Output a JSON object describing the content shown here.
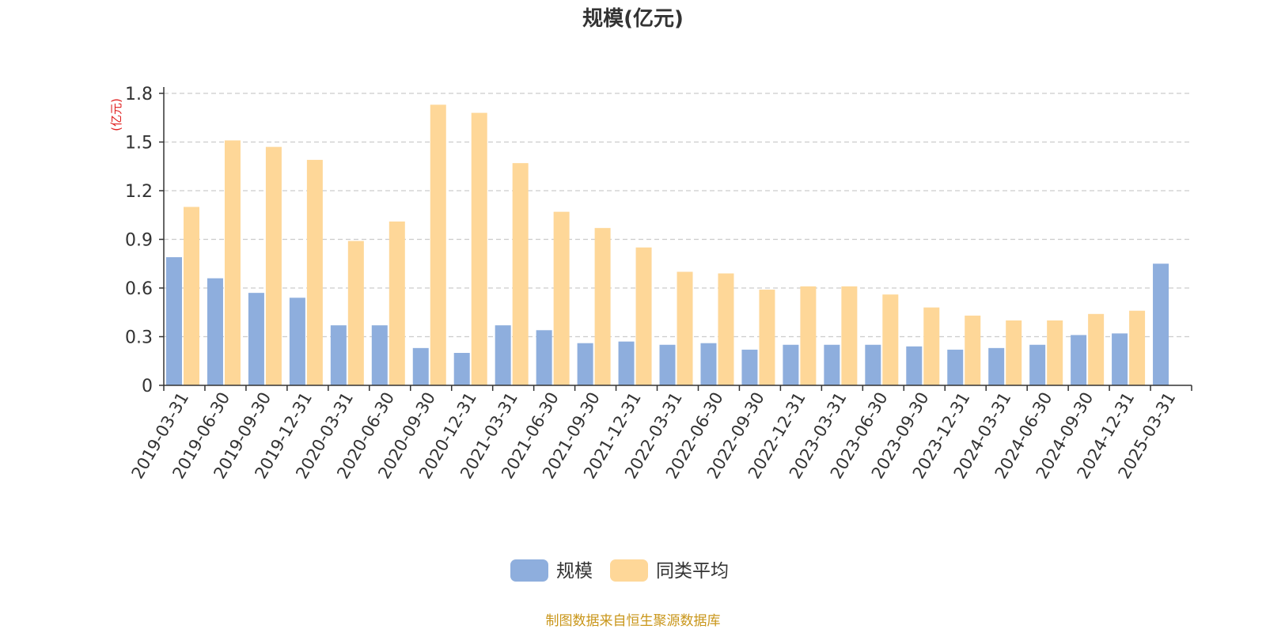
{
  "title": "规模(亿元)",
  "unit_label": "(亿元)",
  "source_note": "制图数据来自恒生聚源数据库",
  "colors": {
    "series_1": "#8eaedd",
    "series_2": "#fed798",
    "unit_label": "#e02020",
    "source_note": "#c9961a",
    "axis": "#333333",
    "grid": "#cccccc"
  },
  "chart_data": {
    "type": "bar",
    "title": "规模(亿元)",
    "ylabel": "(亿元)",
    "ylim": [
      0,
      1.8
    ],
    "yticks": [
      0,
      0.3,
      0.6,
      0.9,
      1.2,
      1.5,
      1.8
    ],
    "ytick_labels": [
      "0",
      "0.3",
      "0.6",
      "0.9",
      "1.2",
      "1.5",
      "1.8"
    ],
    "grid": "horizontal dashed",
    "legend_position": "bottom-center",
    "categories": [
      "2019-03-31",
      "2019-06-30",
      "2019-09-30",
      "2019-12-31",
      "2020-03-31",
      "2020-06-30",
      "2020-09-30",
      "2020-12-31",
      "2021-03-31",
      "2021-06-30",
      "2021-09-30",
      "2021-12-31",
      "2022-03-31",
      "2022-06-30",
      "2022-09-30",
      "2022-12-31",
      "2023-03-31",
      "2023-06-30",
      "2023-09-30",
      "2023-12-31",
      "2024-03-31",
      "2024-06-30",
      "2024-09-30",
      "2024-12-31",
      "2025-03-31"
    ],
    "series": [
      {
        "name": "规模",
        "values": [
          0.79,
          0.66,
          0.57,
          0.54,
          0.37,
          0.37,
          0.23,
          0.2,
          0.37,
          0.34,
          0.26,
          0.27,
          0.25,
          0.26,
          0.22,
          0.25,
          0.25,
          0.25,
          0.24,
          0.22,
          0.23,
          0.25,
          0.31,
          0.32,
          0.75
        ]
      },
      {
        "name": "同类平均",
        "values": [
          1.1,
          1.51,
          1.47,
          1.39,
          0.89,
          1.01,
          1.73,
          1.68,
          1.37,
          1.07,
          0.97,
          0.85,
          0.7,
          0.69,
          0.59,
          0.61,
          0.61,
          0.56,
          0.48,
          0.43,
          0.4,
          0.4,
          0.44,
          0.46,
          null
        ]
      }
    ]
  }
}
